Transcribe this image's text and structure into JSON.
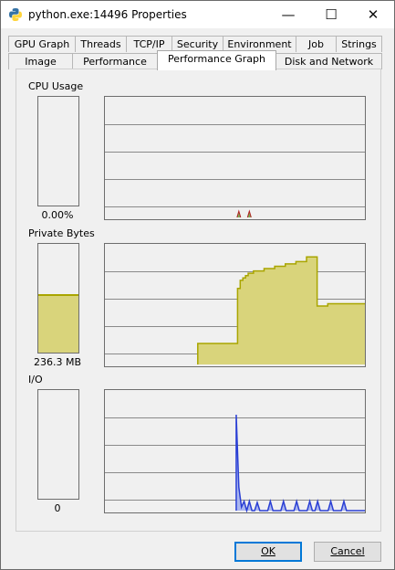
{
  "window": {
    "title": "python.exe:14496 Properties",
    "minimize": "—",
    "maximize": "☐",
    "close": "✕"
  },
  "tabs_back": [
    "GPU Graph",
    "Threads",
    "TCP/IP",
    "Security",
    "Environment",
    "Job",
    "Strings"
  ],
  "tabs_front": [
    "Image",
    "Performance",
    "Performance Graph",
    "Disk and Network"
  ],
  "active_tab": "Performance Graph",
  "cpu": {
    "label": "CPU Usage",
    "value": "0.00%",
    "level": 0.0,
    "samples": [
      0,
      0,
      0,
      0,
      0,
      0,
      0,
      0,
      0,
      0,
      0,
      0,
      0,
      0,
      0,
      0,
      0,
      0,
      0,
      0,
      0,
      0,
      0,
      0,
      0,
      0,
      0,
      0,
      0,
      0,
      0,
      0,
      0,
      0,
      0,
      0,
      0,
      0,
      0,
      0,
      0,
      0,
      0,
      0,
      0,
      0,
      0,
      0,
      0,
      0,
      0,
      0.03,
      0,
      0,
      0,
      0.03,
      0,
      0,
      0,
      0,
      0,
      0,
      0,
      0,
      0,
      0,
      0,
      0,
      0,
      0,
      0,
      0,
      0,
      0,
      0,
      0,
      0,
      0,
      0,
      0,
      0,
      0,
      0,
      0,
      0,
      0,
      0,
      0,
      0,
      0,
      0,
      0,
      0,
      0,
      0,
      0,
      0,
      0,
      0,
      0
    ]
  },
  "private_bytes": {
    "label": "Private Bytes",
    "value": "236.3 MB",
    "level": 0.54,
    "samples": [
      0,
      0,
      0,
      0,
      0,
      0,
      0,
      0,
      0,
      0,
      0,
      0,
      0,
      0,
      0,
      0,
      0,
      0,
      0,
      0,
      0,
      0,
      0,
      0,
      0,
      0,
      0,
      0,
      0,
      0,
      0,
      0,
      0,
      0,
      0,
      0.18,
      0.18,
      0.18,
      0.18,
      0.18,
      0.18,
      0.18,
      0.18,
      0.18,
      0.18,
      0.18,
      0.18,
      0.18,
      0.18,
      0.18,
      0.65,
      0.72,
      0.74,
      0.76,
      0.78,
      0.78,
      0.8,
      0.8,
      0.8,
      0.8,
      0.82,
      0.82,
      0.82,
      0.82,
      0.84,
      0.84,
      0.84,
      0.84,
      0.86,
      0.86,
      0.86,
      0.86,
      0.88,
      0.88,
      0.88,
      0.88,
      0.92,
      0.92,
      0.92,
      0.92,
      0.5,
      0.5,
      0.5,
      0.5,
      0.52,
      0.52,
      0.52,
      0.52,
      0.52,
      0.52,
      0.52,
      0.52,
      0.52,
      0.52,
      0.52,
      0.52,
      0.52,
      0.52,
      0.52
    ]
  },
  "io": {
    "label": "I/O",
    "value": "0",
    "level": 0.0,
    "samples": [
      0,
      0,
      0,
      0,
      0,
      0,
      0,
      0,
      0,
      0,
      0,
      0,
      0,
      0,
      0,
      0,
      0,
      0,
      0,
      0,
      0,
      0,
      0,
      0,
      0,
      0,
      0,
      0,
      0,
      0,
      0,
      0,
      0,
      0,
      0,
      0,
      0,
      0,
      0,
      0,
      0,
      0,
      0,
      0,
      0,
      0,
      0,
      0,
      0,
      0,
      0.82,
      0.2,
      0.03,
      0.08,
      0,
      0.08,
      0,
      0,
      0.07,
      0,
      0,
      0,
      0,
      0.08,
      0,
      0,
      0,
      0,
      0.08,
      0,
      0,
      0,
      0,
      0.08,
      0,
      0,
      0,
      0,
      0.08,
      0,
      0,
      0.08,
      0,
      0,
      0,
      0,
      0.08,
      0,
      0,
      0,
      0,
      0.08,
      0,
      0,
      0,
      0,
      0,
      0,
      0,
      0
    ]
  },
  "buttons": {
    "ok": "OK",
    "cancel": "Cancel"
  },
  "colors": {
    "fill": "#d9d47b",
    "line": "#a9a500",
    "io_line": "#2a3fd4",
    "io_fill": "#aab6f0"
  }
}
